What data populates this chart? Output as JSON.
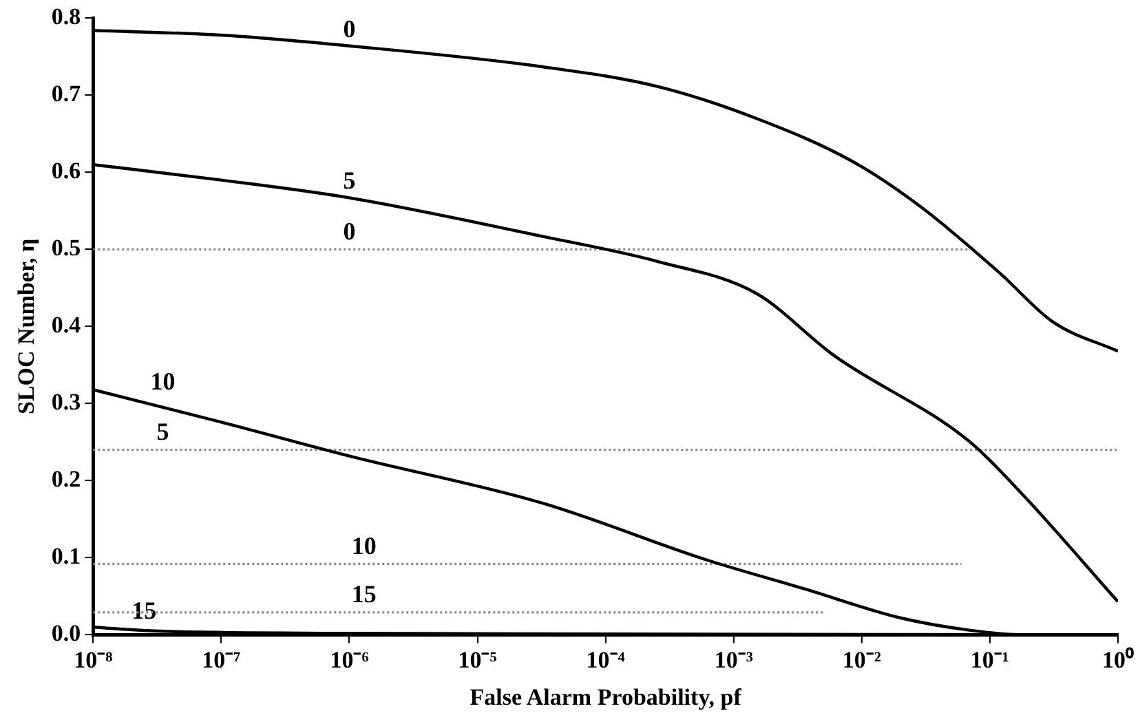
{
  "chart_data": {
    "type": "line",
    "xlabel": "False Alarm Probability, pf",
    "ylabel": "SLOC Number, η",
    "log": "x",
    "grid": false,
    "legend": false,
    "xlim": [
      1e-08,
      1
    ],
    "xticks": [
      {
        "value": 1e-08,
        "label": "10⁻⁸"
      },
      {
        "value": 1e-07,
        "label": "10⁻⁷"
      },
      {
        "value": 1e-06,
        "label": "10⁻⁶"
      },
      {
        "value": 1e-05,
        "label": "10⁻⁵"
      },
      {
        "value": 0.0001,
        "label": "10⁻⁴"
      },
      {
        "value": 0.001,
        "label": "10⁻³"
      },
      {
        "value": 0.01,
        "label": "10⁻²"
      },
      {
        "value": 0.1,
        "label": "10⁻¹"
      },
      {
        "value": 1,
        "label": "10⁰"
      }
    ],
    "ylim": [
      0,
      0.8
    ],
    "yticks": [
      {
        "value": 0,
        "label": "0.0"
      },
      {
        "value": 0.1,
        "label": "0.1"
      },
      {
        "value": 0.2,
        "label": "0.2"
      },
      {
        "value": 0.3,
        "label": "0.3"
      },
      {
        "value": 0.4,
        "label": "0.4"
      },
      {
        "value": 0.5,
        "label": "0.5"
      },
      {
        "value": 0.6,
        "label": "0.6"
      },
      {
        "value": 0.7,
        "label": "0.7"
      },
      {
        "value": 0.8,
        "label": "0.8"
      }
    ],
    "series": [
      {
        "color": "#000000",
        "line_style": "solid",
        "x": [
          1e-08,
          1e-07,
          1e-06,
          3.2e-05,
          0.00026,
          0.0015,
          0.0085,
          0.029,
          0.12,
          0.31,
          1
        ],
        "values": [
          0.784,
          0.778,
          0.764,
          0.737,
          0.711,
          0.67,
          0.614,
          0.555,
          0.469,
          0.406,
          0.368
        ]
      },
      {
        "color": "#000000",
        "line_style": "solid",
        "x": [
          1e-08,
          1e-07,
          1e-06,
          3.2e-05,
          0.00026,
          0.0015,
          0.006,
          0.069,
          0.18,
          1
        ],
        "values": [
          0.61,
          0.59,
          0.567,
          0.517,
          0.484,
          0.443,
          0.363,
          0.251,
          0.182,
          0.043
        ]
      },
      {
        "color": "#000000",
        "line_style": "solid",
        "x": [
          1e-08,
          1e-07,
          1e-06,
          3.2e-05,
          0.00062,
          0.0035,
          0.02,
          0.069,
          0.18,
          1
        ],
        "values": [
          0.318,
          0.276,
          0.232,
          0.171,
          0.097,
          0.06,
          0.022,
          0.006,
          0,
          0
        ]
      },
      {
        "color": "#000000",
        "line_style": "solid",
        "x": [
          1e-08,
          3e-08,
          1e-06,
          0.0001,
          1
        ],
        "values": [
          0.01,
          0.005,
          0.002,
          0.001,
          0
        ]
      },
      {
        "color": "#888888",
        "line_style": "dotted",
        "x": [
          1e-08,
          0.07
        ],
        "values": [
          0.5,
          0.5
        ]
      },
      {
        "color": "#888888",
        "line_style": "dotted",
        "x": [
          1e-08,
          1
        ],
        "values": [
          0.24,
          0.24
        ]
      },
      {
        "color": "#888888",
        "line_style": "dotted",
        "x": [
          1e-08,
          0.06
        ],
        "values": [
          0.092,
          0.092
        ]
      },
      {
        "color": "#888888",
        "line_style": "dotted",
        "x": [
          1e-08,
          0.005
        ],
        "values": [
          0.029,
          0.029
        ]
      }
    ],
    "annotations": [
      {
        "text": "0",
        "x": 1e-06,
        "y": 0.762
      },
      {
        "text": "5",
        "x": 1e-06,
        "y": 0.566
      },
      {
        "text": "10",
        "x": 3.5e-08,
        "y": 0.305
      },
      {
        "text": "15",
        "x": 2.5e-08,
        "y": 0.008
      },
      {
        "text": "0",
        "x": 1e-06,
        "y": 0.5
      },
      {
        "text": "5",
        "x": 3.5e-08,
        "y": 0.24
      },
      {
        "text": "10",
        "x": 1.3e-06,
        "y": 0.092
      },
      {
        "text": "15",
        "x": 1.3e-06,
        "y": 0.029
      }
    ]
  }
}
